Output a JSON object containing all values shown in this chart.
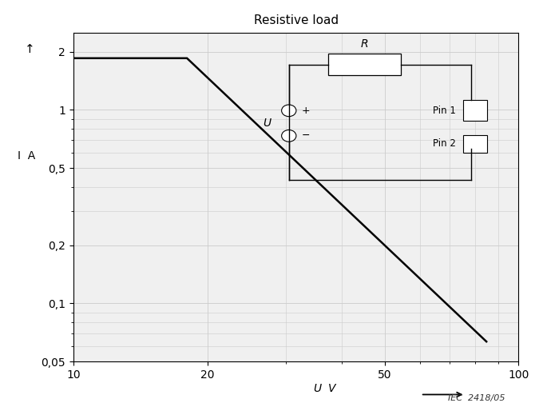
{
  "title": "Resistive load",
  "xmin": 10,
  "xmax": 100,
  "ymin": 0.05,
  "ymax": 2.5,
  "line_x": [
    10,
    18,
    85,
    85
  ],
  "line_y": [
    1.85,
    1.85,
    0.063,
    0.063
  ],
  "line_color": "#000000",
  "line_width": 1.8,
  "bg_color": "#f0f0f0",
  "grid_color": "#cccccc",
  "yticks": [
    0.05,
    0.1,
    0.2,
    0.5,
    1.0,
    2.0
  ],
  "ytick_labels": [
    "0,05",
    "0,1",
    "0,2",
    "0,5",
    "1",
    "2"
  ],
  "xticks": [
    10,
    20,
    50,
    100
  ],
  "xtick_labels": [
    "10",
    "20",
    "50",
    "100"
  ],
  "iec_label": "IEC  2418/05"
}
